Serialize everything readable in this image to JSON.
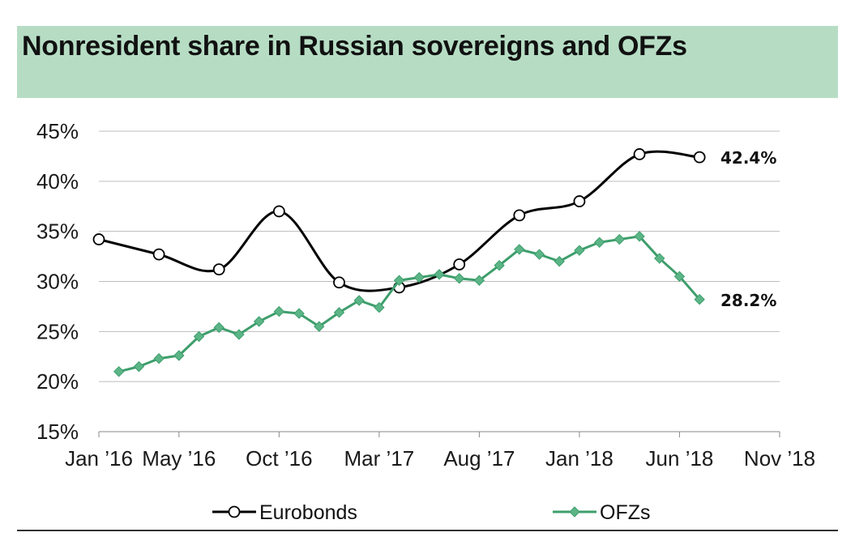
{
  "title": "Nonresident share in Russian sovereigns and OFZs",
  "colors": {
    "title_band": "#b6ddc4",
    "eurobonds": "#000000",
    "ofzs": "#3e9e6c",
    "ofz_marker": "#5cb587",
    "grid": "#bdbdbd"
  },
  "chart_data": {
    "type": "line",
    "title": "Nonresident share in Russian sovereigns and OFZs",
    "xlabel": "",
    "ylabel": "",
    "x_axis_type": "date",
    "xlim": [
      "2016-01-01",
      "2018-11-01"
    ],
    "ylim": [
      15,
      45
    ],
    "yticks": [
      15,
      20,
      25,
      30,
      35,
      40,
      45
    ],
    "ytick_labels": [
      "15%",
      "20%",
      "25%",
      "30%",
      "35%",
      "40%",
      "45%"
    ],
    "xticks": [
      "2016-01-01",
      "2016-05-01",
      "2016-10-01",
      "2017-03-01",
      "2017-08-01",
      "2018-01-01",
      "2018-06-01",
      "2018-11-01"
    ],
    "xtick_labels": [
      "Jan ’16",
      "May ’16",
      "Oct ’16",
      "Mar ’17",
      "Aug ’17",
      "Jan ’18",
      "Jun ’18",
      "Nov ’18"
    ],
    "grid": "horizontal",
    "legend": "bottom",
    "series": [
      {
        "name": "Eurobonds",
        "marker": "circle",
        "smooth": true,
        "end_label": "42.4%",
        "x": [
          "2016-01-01",
          "2016-04-01",
          "2016-07-01",
          "2016-10-01",
          "2017-01-01",
          "2017-04-01",
          "2017-07-01",
          "2017-10-01",
          "2018-01-01",
          "2018-04-01",
          "2018-07-01"
        ],
        "y": [
          34.2,
          32.7,
          31.2,
          37.0,
          29.9,
          29.4,
          31.7,
          36.6,
          38.0,
          42.7,
          42.4
        ]
      },
      {
        "name": "OFZs",
        "marker": "diamond",
        "smooth": false,
        "end_label": "28.2%",
        "x": [
          "2016-02-01",
          "2016-03-01",
          "2016-04-01",
          "2016-05-01",
          "2016-06-01",
          "2016-07-01",
          "2016-08-01",
          "2016-09-01",
          "2016-10-01",
          "2016-11-01",
          "2016-12-01",
          "2017-01-01",
          "2017-02-01",
          "2017-03-01",
          "2017-04-01",
          "2017-05-01",
          "2017-06-01",
          "2017-07-01",
          "2017-08-01",
          "2017-09-01",
          "2017-10-01",
          "2017-11-01",
          "2017-12-01",
          "2018-01-01",
          "2018-02-01",
          "2018-03-01",
          "2018-04-01",
          "2018-05-01",
          "2018-06-01",
          "2018-07-01"
        ],
        "y": [
          21.0,
          21.5,
          22.3,
          22.6,
          24.5,
          25.4,
          24.7,
          26.0,
          27.0,
          26.8,
          25.5,
          26.9,
          28.1,
          27.4,
          30.1,
          30.4,
          30.7,
          30.3,
          30.1,
          31.6,
          33.2,
          32.7,
          32.0,
          33.1,
          33.9,
          34.2,
          34.5,
          32.3,
          30.5,
          28.2
        ]
      }
    ]
  }
}
